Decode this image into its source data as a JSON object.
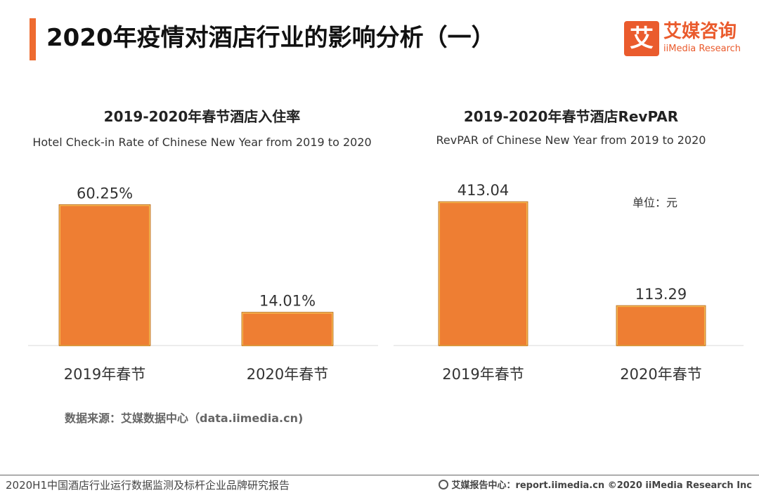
{
  "page": {
    "title": "2020年疫情对酒店行业的影响分析（一）",
    "accent_color": "#ee6b30"
  },
  "logo": {
    "mark": "艾",
    "cn": "艾媒咨询",
    "en": "iiMedia Research",
    "color": "#ea5b2d"
  },
  "chart_data": [
    {
      "type": "bar",
      "title": "2019-2020年春节酒店入住率",
      "subtitle": "Hotel Check-in Rate of Chinese New Year  from 2019 to 2020",
      "categories": [
        "2019年春节",
        "2020年春节"
      ],
      "values": [
        60.25,
        14.01
      ],
      "data_labels": [
        "60.25%",
        "14.01%"
      ],
      "unit": "",
      "ylim": [
        0,
        70
      ],
      "xlabel": "",
      "ylabel": "",
      "grid": false,
      "bar_color": "#ee7e33",
      "bar_border_color": "#f6b84f"
    },
    {
      "type": "bar",
      "title": "2019-2020年春节酒店RevPAR",
      "subtitle": "RevPAR of Chinese New Year from 2019 to 2020",
      "categories": [
        "2019年春节",
        "2020年春节"
      ],
      "values": [
        413.04,
        113.29
      ],
      "data_labels": [
        "413.04",
        "113.29"
      ],
      "unit": "单位：元",
      "ylim": [
        0,
        470
      ],
      "xlabel": "",
      "ylabel": "",
      "grid": false,
      "bar_color": "#ee7e33",
      "bar_border_color": "#f6b84f"
    }
  ],
  "source": {
    "label": "数据来源：艾媒数据中心（data.iimedia.cn)"
  },
  "footer": {
    "left": "2020H1中国酒店行业运行数据监测及标杆企业品牌研究报告",
    "right": "艾媒报告中心：report.iimedia.cn    ©2020  iiMedia Research  Inc"
  }
}
